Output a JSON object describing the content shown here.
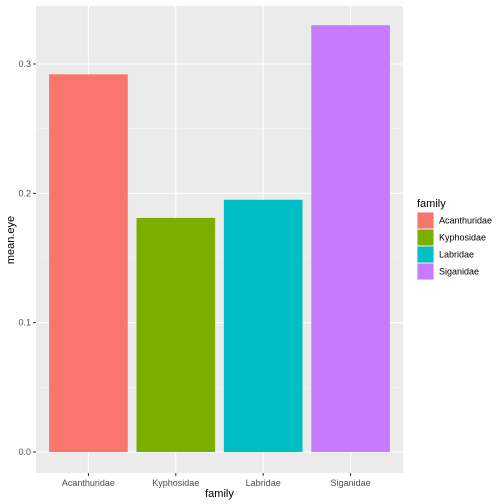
{
  "chart_data": {
    "type": "bar",
    "categories": [
      "Acanthuridae",
      "Kyphosidae",
      "Labridae",
      "Siganidae"
    ],
    "values": [
      0.292,
      0.181,
      0.195,
      0.33
    ],
    "colors": [
      "#F8766D",
      "#7CAE00",
      "#00BFC4",
      "#C77CFF"
    ],
    "xlabel": "family",
    "ylabel": "mean.eye",
    "ylim": [
      0,
      0.345
    ],
    "yticks": [
      0.0,
      0.1,
      0.2,
      0.3
    ],
    "ytick_labels": [
      "0.0",
      "0.1",
      "0.2",
      "0.3"
    ],
    "legend": {
      "title": "family",
      "placement": "right",
      "entries": [
        "Acanthuridae",
        "Kyphosidae",
        "Labridae",
        "Siganidae"
      ]
    },
    "grid": true,
    "panel_background": "#EBEBEB"
  }
}
